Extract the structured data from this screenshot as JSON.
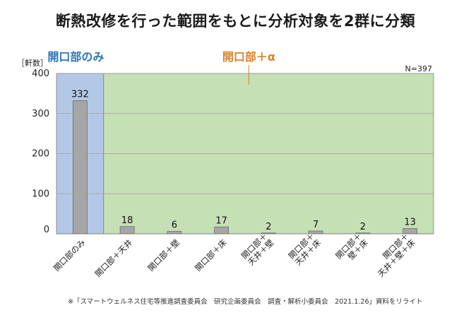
{
  "chart_data": {
    "type": "bar",
    "title": "断熱改修を行った範囲をもとに分析対象を2群に分類",
    "ylabel": "［軒数］",
    "ylim": [
      0,
      400
    ],
    "yticks": [
      0,
      100,
      200,
      300,
      400
    ],
    "note": "N=397",
    "categories": [
      [
        "開口部のみ"
      ],
      [
        "開口部＋天井"
      ],
      [
        "開口部＋壁"
      ],
      [
        "開口部＋床"
      ],
      [
        "開口部＋",
        "天井＋壁"
      ],
      [
        "開口部＋",
        "天井＋床"
      ],
      [
        "開口部＋",
        "壁＋床"
      ],
      [
        "開口部＋",
        "天井＋壁＋床"
      ]
    ],
    "values": [
      332,
      18,
      6,
      17,
      2,
      7,
      2,
      13
    ],
    "groups": [
      {
        "label": "開口部のみ",
        "start": 0,
        "end": 0,
        "fill": "#b4c7e7",
        "label_color": "#2e75b6"
      },
      {
        "label": "開口部＋α",
        "start": 1,
        "end": 7,
        "fill": "#c5e0b4",
        "label_color": "#d9822b"
      }
    ],
    "bar_color": "#a6a6a6",
    "grid": true
  },
  "source": "※「スマートウェルネス住宅等推進調査委員会　研究企画委員会　調査・解析小委員会　2021.1.26」資料をリライト"
}
